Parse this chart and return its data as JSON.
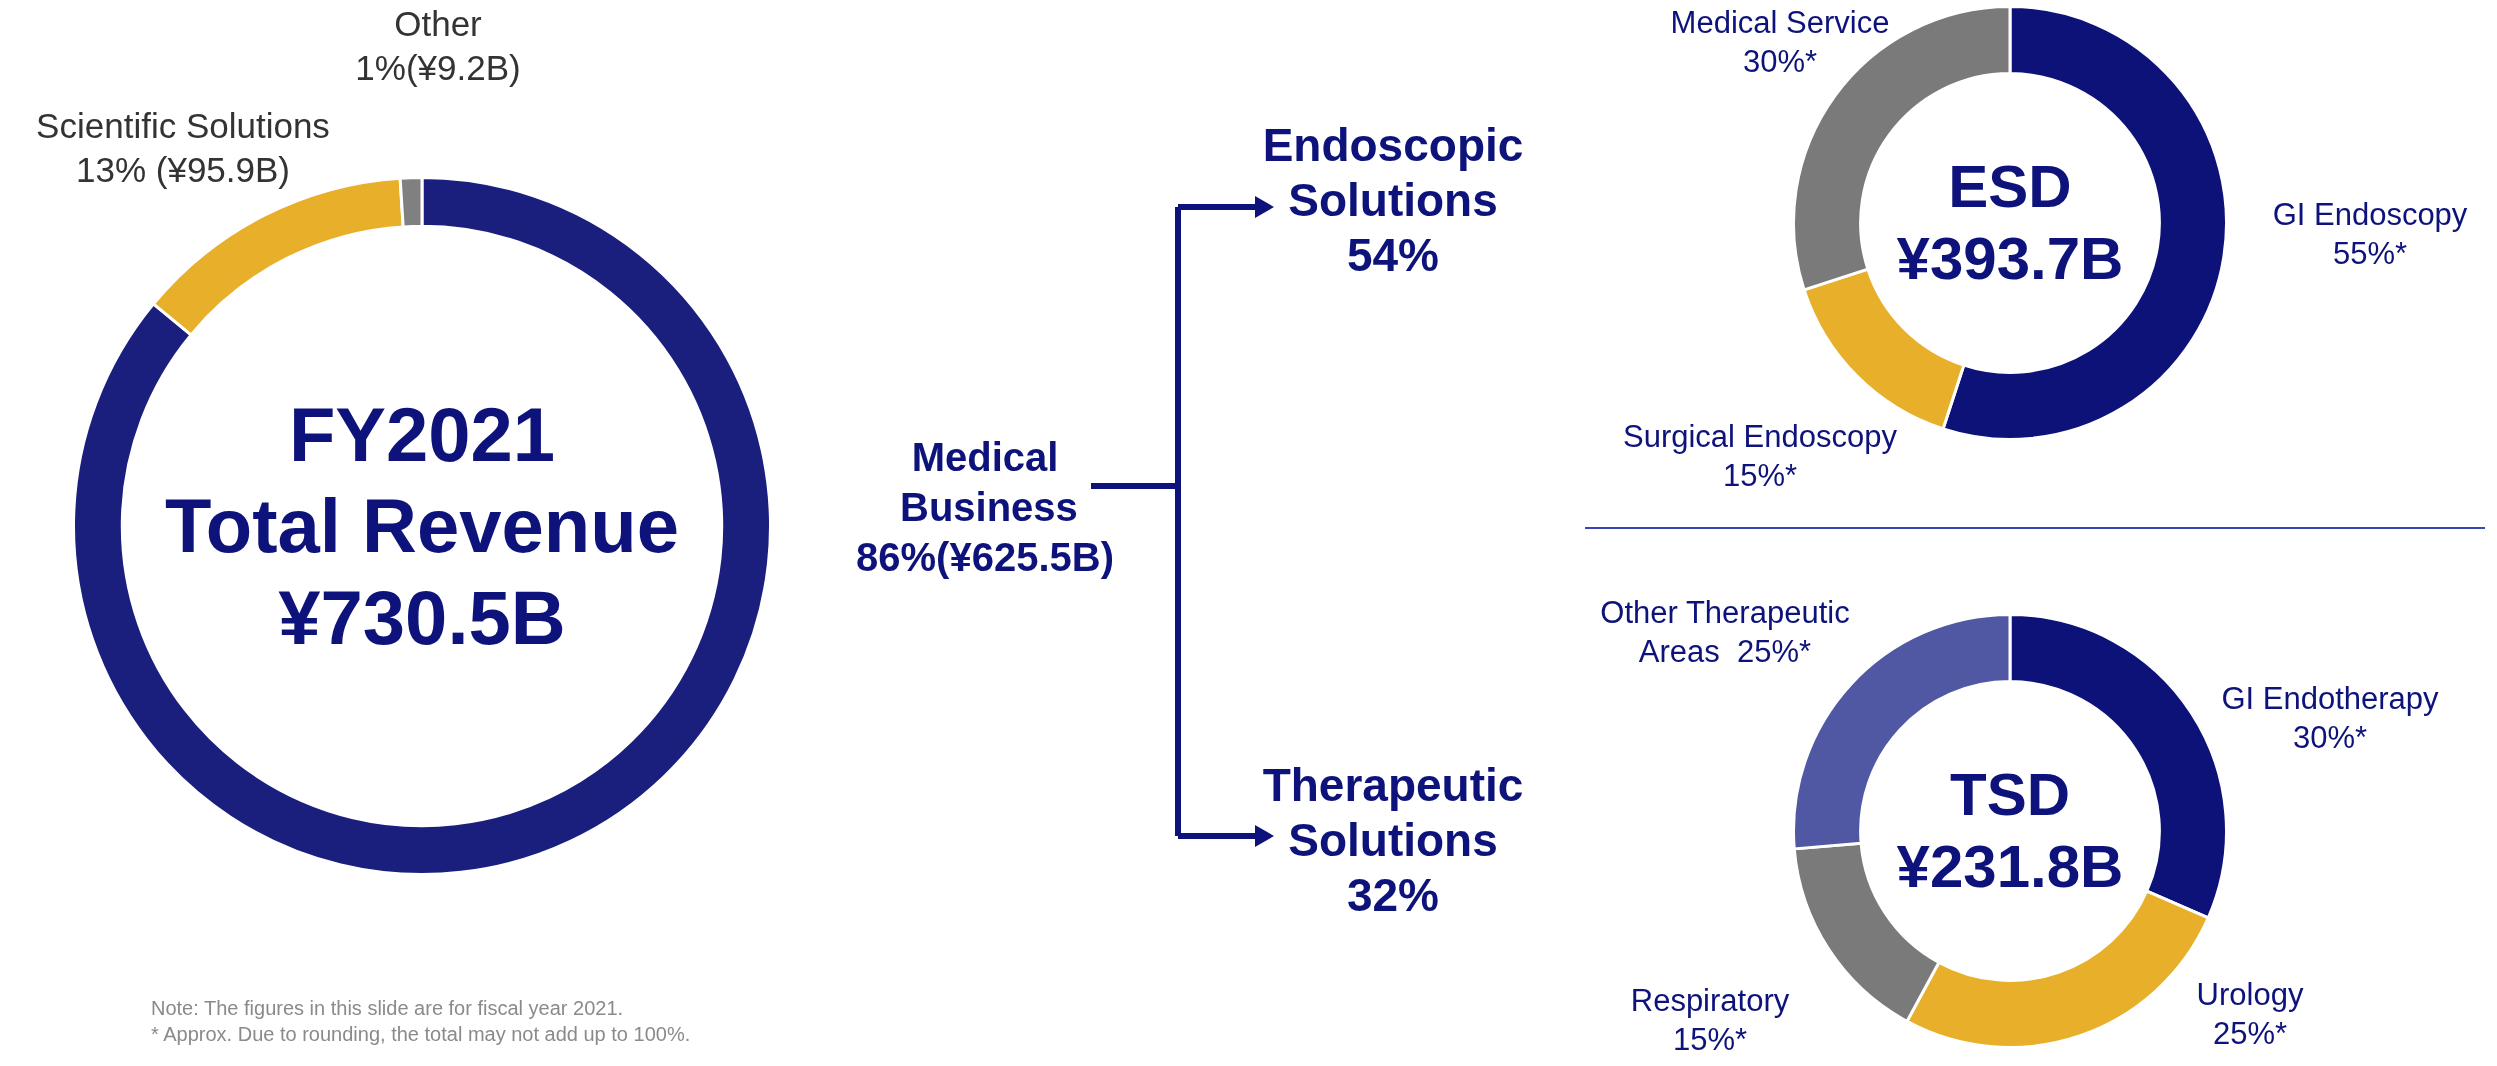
{
  "chart_data": [
    {
      "type": "donut",
      "title": "FY2021\nTotal Revenue\n¥730.5B",
      "categories": [
        "Medical Business",
        "Scientific Solutions",
        "Other"
      ],
      "values": [
        86,
        13,
        1
      ],
      "colors": [
        "#1a1f7e",
        "#e8b02a",
        "#808080"
      ],
      "value_labels": [
        "86%(¥625.5B)",
        "13% (¥95.9B)",
        "1%(¥9.2B)"
      ],
      "annotations": [
        "Note: The figures in this slide are for fiscal year 2021.",
        "* Approx. Due to rounding, the total may not add up to 100%."
      ]
    },
    {
      "type": "donut",
      "title": "ESD\n¥393.7B",
      "categories": [
        "GI Endoscopy",
        "Surgical Endoscopy",
        "Medical Service"
      ],
      "values": [
        55,
        15,
        30
      ],
      "colors": [
        "#0c1278",
        "#e8b02a",
        "#7a7a7a"
      ],
      "value_labels": [
        "55%*",
        "15%*",
        "30%*"
      ]
    },
    {
      "type": "donut",
      "title": "TSD\n¥231.8B",
      "categories": [
        "GI Endotherapy",
        "Urology",
        "Respiratory",
        "Other Therapeutic Areas"
      ],
      "values": [
        30,
        25,
        15,
        25
      ],
      "colors": [
        "#0c1278",
        "#e8b02a",
        "#7a7a7a",
        "#5058a3"
      ],
      "value_labels": [
        "30%*",
        "25%*",
        "15%*",
        "25%*"
      ]
    },
    {
      "type": "other",
      "annotations": [
        "Endoscopic Solutions\n54%",
        "Therapeutic Solutions\n32%"
      ]
    }
  ]
}
